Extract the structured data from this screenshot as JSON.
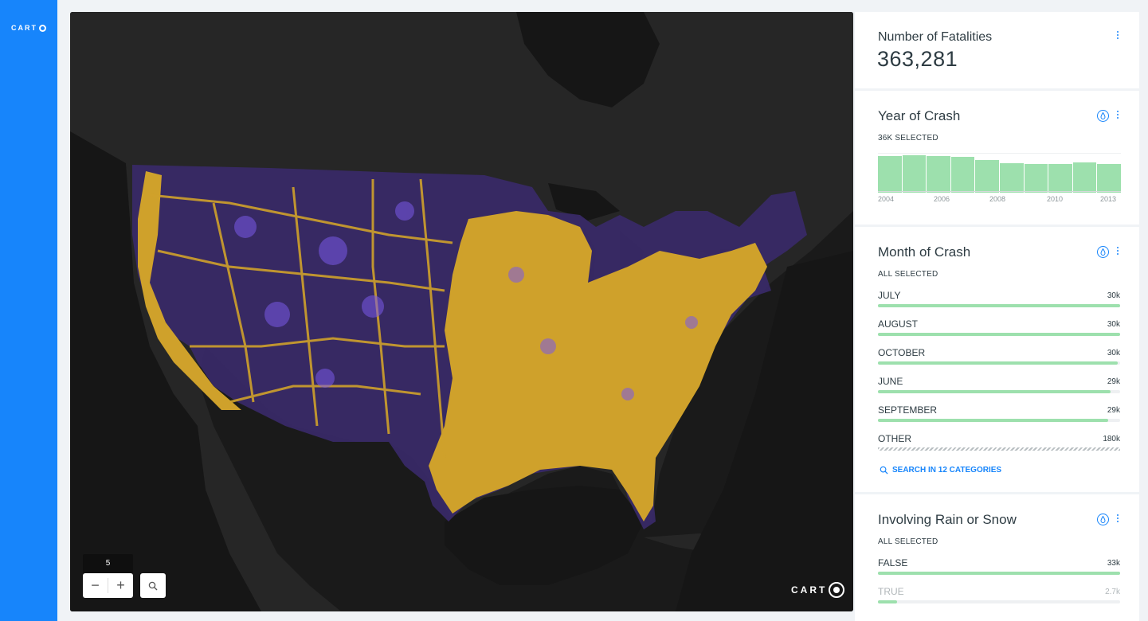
{
  "sidebar": {
    "logo_text": "CART"
  },
  "map": {
    "zoom_level": "5",
    "zoom_out_label": "−",
    "zoom_in_label": "+",
    "logo_text": "CART",
    "colors": {
      "background": "#2a2a2a",
      "water": "#161616",
      "land": "#272727",
      "dense": "#d4a52a",
      "sparse": "#6b4de6",
      "mid": "#c0468f"
    }
  },
  "widgets": {
    "fatalities": {
      "title": "Number of Fatalities",
      "value": "363,281"
    },
    "year": {
      "title": "Year of Crash",
      "subtitle": "36K SELECTED",
      "axis_labels": [
        "2004",
        "2006",
        "2008",
        "2010",
        "2013"
      ],
      "bar_values": [
        0.96,
        0.98,
        0.96,
        0.93,
        0.86,
        0.78,
        0.76,
        0.76,
        0.79,
        0.76
      ]
    },
    "month": {
      "title": "Month of Crash",
      "subtitle": "ALL SELECTED",
      "categories": [
        {
          "name": "JULY",
          "value": "30k",
          "ratio": 1.0
        },
        {
          "name": "AUGUST",
          "value": "30k",
          "ratio": 1.0
        },
        {
          "name": "OCTOBER",
          "value": "30k",
          "ratio": 0.99
        },
        {
          "name": "JUNE",
          "value": "29k",
          "ratio": 0.96
        },
        {
          "name": "SEPTEMBER",
          "value": "29k",
          "ratio": 0.95
        },
        {
          "name": "OTHER",
          "value": "180k",
          "ratio": 1.0
        }
      ],
      "search_label": "SEARCH IN 12 CATEGORIES"
    },
    "rain": {
      "title": "Involving Rain or Snow",
      "subtitle": "ALL SELECTED",
      "categories": [
        {
          "name": "FALSE",
          "value": "33k",
          "ratio": 1.0
        },
        {
          "name": "TRUE",
          "value": "2.7k",
          "ratio": 0.08
        }
      ]
    }
  },
  "accent_color": "#1785fb",
  "bar_color": "#9de0ad"
}
